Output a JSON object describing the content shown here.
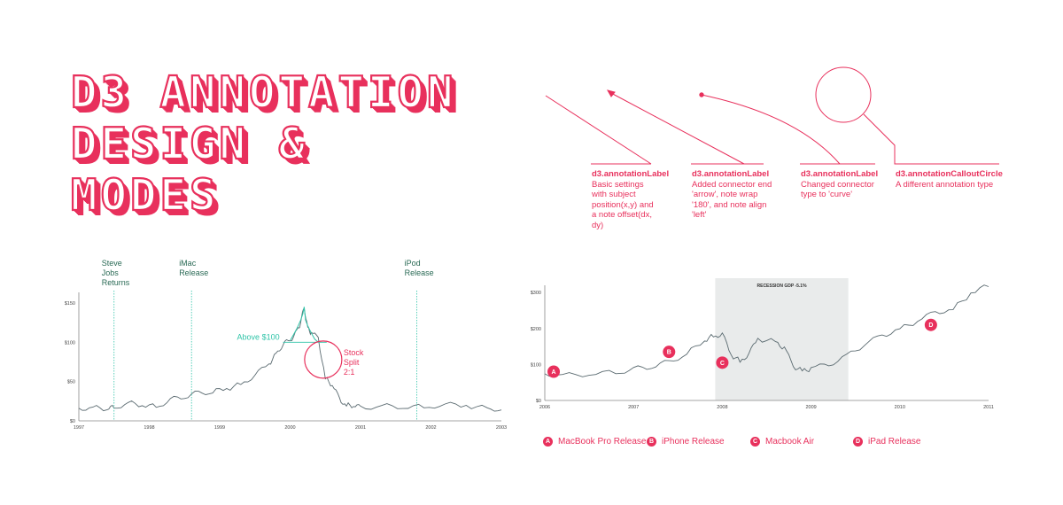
{
  "title_lines": [
    "D3 ANNOTATION",
    "DESIGN &",
    "MODES"
  ],
  "colors": {
    "accent": "#e8305c",
    "teal": "#2fc4a8",
    "line": "#5a6a70",
    "shade": "#e9ebeb"
  },
  "annotation_examples": [
    {
      "title": "d3.annotationLabel",
      "lines": [
        "Basic settings",
        "with subject",
        "position(x,y) and",
        "a note offset(dx,",
        "dy)"
      ]
    },
    {
      "title": "d3.annotationLabel",
      "lines": [
        "Added connector end",
        "'arrow', note wrap",
        "'180', and note align",
        "'left'"
      ]
    },
    {
      "title": "d3.annotationLabel",
      "lines": [
        "Changed connector",
        "type to 'curve'"
      ]
    },
    {
      "title": "d3.annotationCalloutCircle",
      "lines": [
        "A different annotation type"
      ]
    }
  ],
  "chart_data": [
    {
      "type": "line",
      "title": "",
      "x_ticks": [
        "1997",
        "1998",
        "1999",
        "2000",
        "2001",
        "2002",
        "2003"
      ],
      "y_ticks": [
        "$0",
        "$50",
        "$100",
        "$150"
      ],
      "ylim": [
        0,
        160
      ],
      "xlim": [
        1997.0,
        2003.0
      ],
      "series": [
        {
          "x": [
            1997.0,
            1997.2,
            1997.4,
            1997.5,
            1997.7,
            1997.9,
            1998.1,
            1998.3,
            1998.5,
            1998.7,
            1998.9,
            1999.1,
            1999.3,
            1999.5,
            1999.7,
            1999.8,
            1999.9,
            2000.0,
            2000.1,
            2000.15,
            2000.2,
            2000.25,
            2000.3,
            2000.4,
            2000.5,
            2000.6,
            2000.7,
            2000.8,
            2000.9,
            2001.0,
            2001.3,
            2001.6,
            2001.9,
            2002.2,
            2002.5,
            2002.8,
            2003.0
          ],
          "y": [
            16,
            17,
            15,
            17,
            23,
            19,
            18,
            27,
            30,
            36,
            37,
            40,
            47,
            58,
            72,
            85,
            98,
            102,
            115,
            125,
            145,
            118,
            112,
            105,
            55,
            45,
            28,
            20,
            19,
            17,
            19,
            17,
            18,
            21,
            18,
            16,
            15
          ]
        }
      ],
      "annotations": [
        {
          "label": "Steve Jobs Returns",
          "lines": [
            "Steve",
            "Jobs",
            "Returns"
          ],
          "x": 1997.5
        },
        {
          "label": "iMac Release",
          "lines": [
            "iMac",
            "Release"
          ],
          "x": 1998.6
        },
        {
          "label": "iPod Release",
          "lines": [
            "iPod",
            "Release"
          ],
          "x": 2001.8
        },
        {
          "label": "Above $100",
          "threshold": 100
        },
        {
          "label": "Stock Split 2:1",
          "lines": [
            "Stock",
            "Split",
            "2:1"
          ],
          "x": 2000.47,
          "y": 78
        }
      ]
    },
    {
      "type": "line",
      "title": "RECESSION GDP -5.1%",
      "x_ticks": [
        "2006",
        "2007",
        "2008",
        "2009",
        "2010",
        "2011"
      ],
      "y_ticks": [
        "$0",
        "$100",
        "$200",
        "$300"
      ],
      "ylim": [
        0,
        320
      ],
      "xlim": [
        2006.0,
        2011.0
      ],
      "shaded_range": [
        2007.92,
        2009.42
      ],
      "series": [
        {
          "x": [
            2006.0,
            2006.2,
            2006.5,
            2006.8,
            2007.0,
            2007.2,
            2007.4,
            2007.6,
            2007.8,
            2007.9,
            2008.0,
            2008.1,
            2008.2,
            2008.3,
            2008.4,
            2008.6,
            2008.7,
            2008.8,
            2008.9,
            2009.0,
            2009.2,
            2009.4,
            2009.6,
            2009.8,
            2010.0,
            2010.2,
            2010.4,
            2010.6,
            2010.8,
            2011.0
          ],
          "y": [
            75,
            70,
            72,
            78,
            88,
            92,
            108,
            130,
            165,
            180,
            185,
            125,
            110,
            130,
            170,
            165,
            145,
            95,
            85,
            88,
            100,
            125,
            155,
            180,
            200,
            220,
            245,
            255,
            295,
            320
          ]
        }
      ],
      "markers": [
        {
          "id": "A",
          "label": "MacBook Pro Release",
          "x": 2006.1,
          "y": 80
        },
        {
          "id": "B",
          "label": "iPhone Release",
          "x": 2007.4,
          "y": 135
        },
        {
          "id": "C",
          "label": "Macbook Air",
          "x": 2008.0,
          "y": 105
        },
        {
          "id": "D",
          "label": "iPad Release",
          "x": 2010.35,
          "y": 210
        }
      ]
    }
  ]
}
